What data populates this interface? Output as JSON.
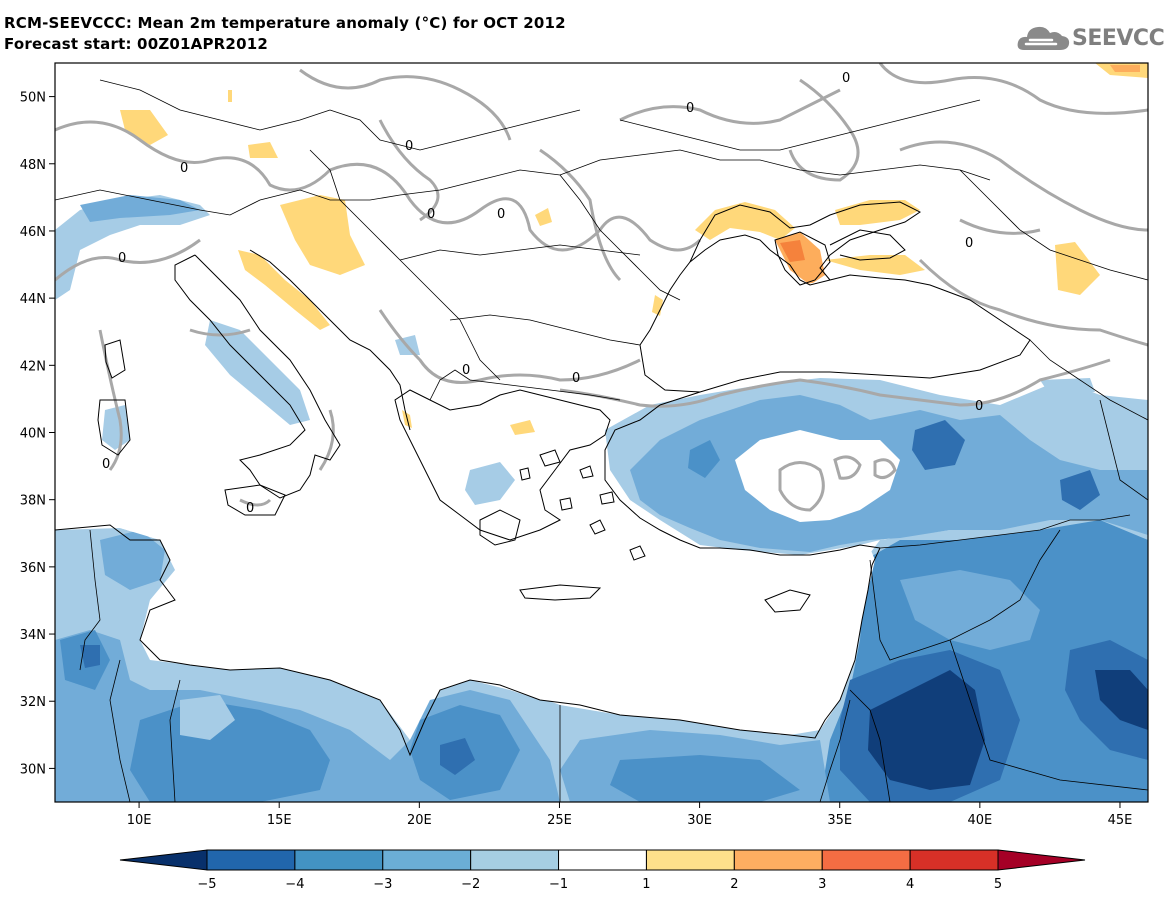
{
  "header": {
    "title_line1": "RCM-SEEVCCC: Mean 2m temperature anomaly (°C) for OCT 2012",
    "title_line2": "Forecast start: 00Z01APR2012",
    "logo_text": "SEEVCCC"
  },
  "map": {
    "lon_range": [
      7,
      46
    ],
    "lat_range": [
      29,
      51
    ],
    "lat_ticks": [
      "30N",
      "32N",
      "34N",
      "36N",
      "38N",
      "40N",
      "42N",
      "44N",
      "46N",
      "48N",
      "50N"
    ],
    "lon_ticks": [
      "10E",
      "15E",
      "20E",
      "25E",
      "30E",
      "35E",
      "40E",
      "45E"
    ],
    "contour_label": "0"
  },
  "colorbar": {
    "ticks": [
      "−5",
      "−4",
      "−3",
      "−2",
      "−1",
      "1",
      "2",
      "3",
      "4",
      "5"
    ],
    "colors": [
      "#08306b",
      "#2166ac",
      "#4393c3",
      "#6baed6",
      "#a6cee3",
      "#ffffff",
      "#fee08b",
      "#fdae61",
      "#f46d43",
      "#d73027",
      "#a50026"
    ]
  },
  "palette": {
    "blue_dark": "#103e7a",
    "blue_mid": "#2f6fb0",
    "blue_med": "#4b91c8",
    "blue_light": "#72acd8",
    "blue_pale": "#a6cce6",
    "yellow": "#ffd87a",
    "orange": "#fdad5c",
    "orange_dark": "#f5823c",
    "contour": "#a8a8a8"
  }
}
